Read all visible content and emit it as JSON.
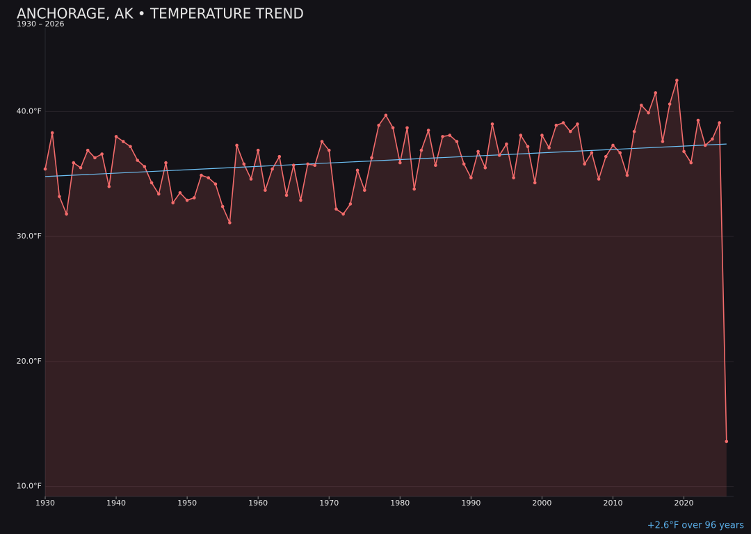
{
  "chart_data": {
    "type": "line",
    "title": "ANCHORAGE, AK • TEMPERATURE TREND",
    "subtitle": "1930 – 2026",
    "annotation": "+2.6°F over 96 years",
    "x": [
      1930,
      1931,
      1932,
      1933,
      1934,
      1935,
      1936,
      1937,
      1938,
      1939,
      1940,
      1941,
      1942,
      1943,
      1944,
      1945,
      1946,
      1947,
      1948,
      1949,
      1950,
      1951,
      1952,
      1953,
      1954,
      1955,
      1956,
      1957,
      1958,
      1959,
      1960,
      1961,
      1962,
      1963,
      1964,
      1965,
      1966,
      1967,
      1968,
      1969,
      1970,
      1971,
      1972,
      1973,
      1974,
      1975,
      1976,
      1977,
      1978,
      1979,
      1980,
      1981,
      1982,
      1983,
      1984,
      1985,
      1986,
      1987,
      1988,
      1989,
      1990,
      1991,
      1992,
      1993,
      1994,
      1995,
      1996,
      1997,
      1998,
      1999,
      2000,
      2001,
      2002,
      2003,
      2004,
      2005,
      2006,
      2007,
      2008,
      2009,
      2010,
      2011,
      2012,
      2013,
      2014,
      2015,
      2016,
      2017,
      2018,
      2019,
      2020,
      2021,
      2022,
      2023,
      2024,
      2025,
      2026
    ],
    "values": [
      35.4,
      38.3,
      33.2,
      31.8,
      35.9,
      35.5,
      36.9,
      36.3,
      36.6,
      34.0,
      38.0,
      37.6,
      37.2,
      36.1,
      35.6,
      34.3,
      33.4,
      35.9,
      32.7,
      33.5,
      32.9,
      33.1,
      34.9,
      34.7,
      34.2,
      32.4,
      31.1,
      37.3,
      35.8,
      34.6,
      36.9,
      33.7,
      35.4,
      36.4,
      33.3,
      35.7,
      32.9,
      35.8,
      35.7,
      37.6,
      36.9,
      32.2,
      31.8,
      32.6,
      35.3,
      33.7,
      36.3,
      38.9,
      39.7,
      38.7,
      35.9,
      38.7,
      33.8,
      36.9,
      38.5,
      35.7,
      38.0,
      38.1,
      37.6,
      35.8,
      34.7,
      36.8,
      35.5,
      39.0,
      36.5,
      37.4,
      34.7,
      38.1,
      37.2,
      34.3,
      38.1,
      37.1,
      38.9,
      39.1,
      38.4,
      39.0,
      35.8,
      36.7,
      34.6,
      36.4,
      37.3,
      36.7,
      34.9,
      38.4,
      40.5,
      39.9,
      41.5,
      37.6,
      40.6,
      42.5,
      36.8,
      35.9,
      39.3,
      37.3,
      37.8,
      39.1,
      13.6
    ],
    "color": "#f26b6b",
    "area": true,
    "trend": {
      "color": "#6ec1f5",
      "x": [
        1930,
        2026
      ],
      "values": [
        34.8,
        37.4
      ]
    },
    "xlim": [
      1930,
      2027
    ],
    "xticks": [
      1930,
      1940,
      1950,
      1960,
      1970,
      1980,
      1990,
      2000,
      2010,
      2020
    ],
    "ylim": [
      9.2,
      46.7
    ],
    "yticks": [
      {
        "value": 10,
        "label": "10.0°F"
      },
      {
        "value": 20,
        "label": "20.0°F"
      },
      {
        "value": 30,
        "label": "30.0°F"
      },
      {
        "value": 40,
        "label": "40.0°F"
      }
    ],
    "grid": true
  }
}
